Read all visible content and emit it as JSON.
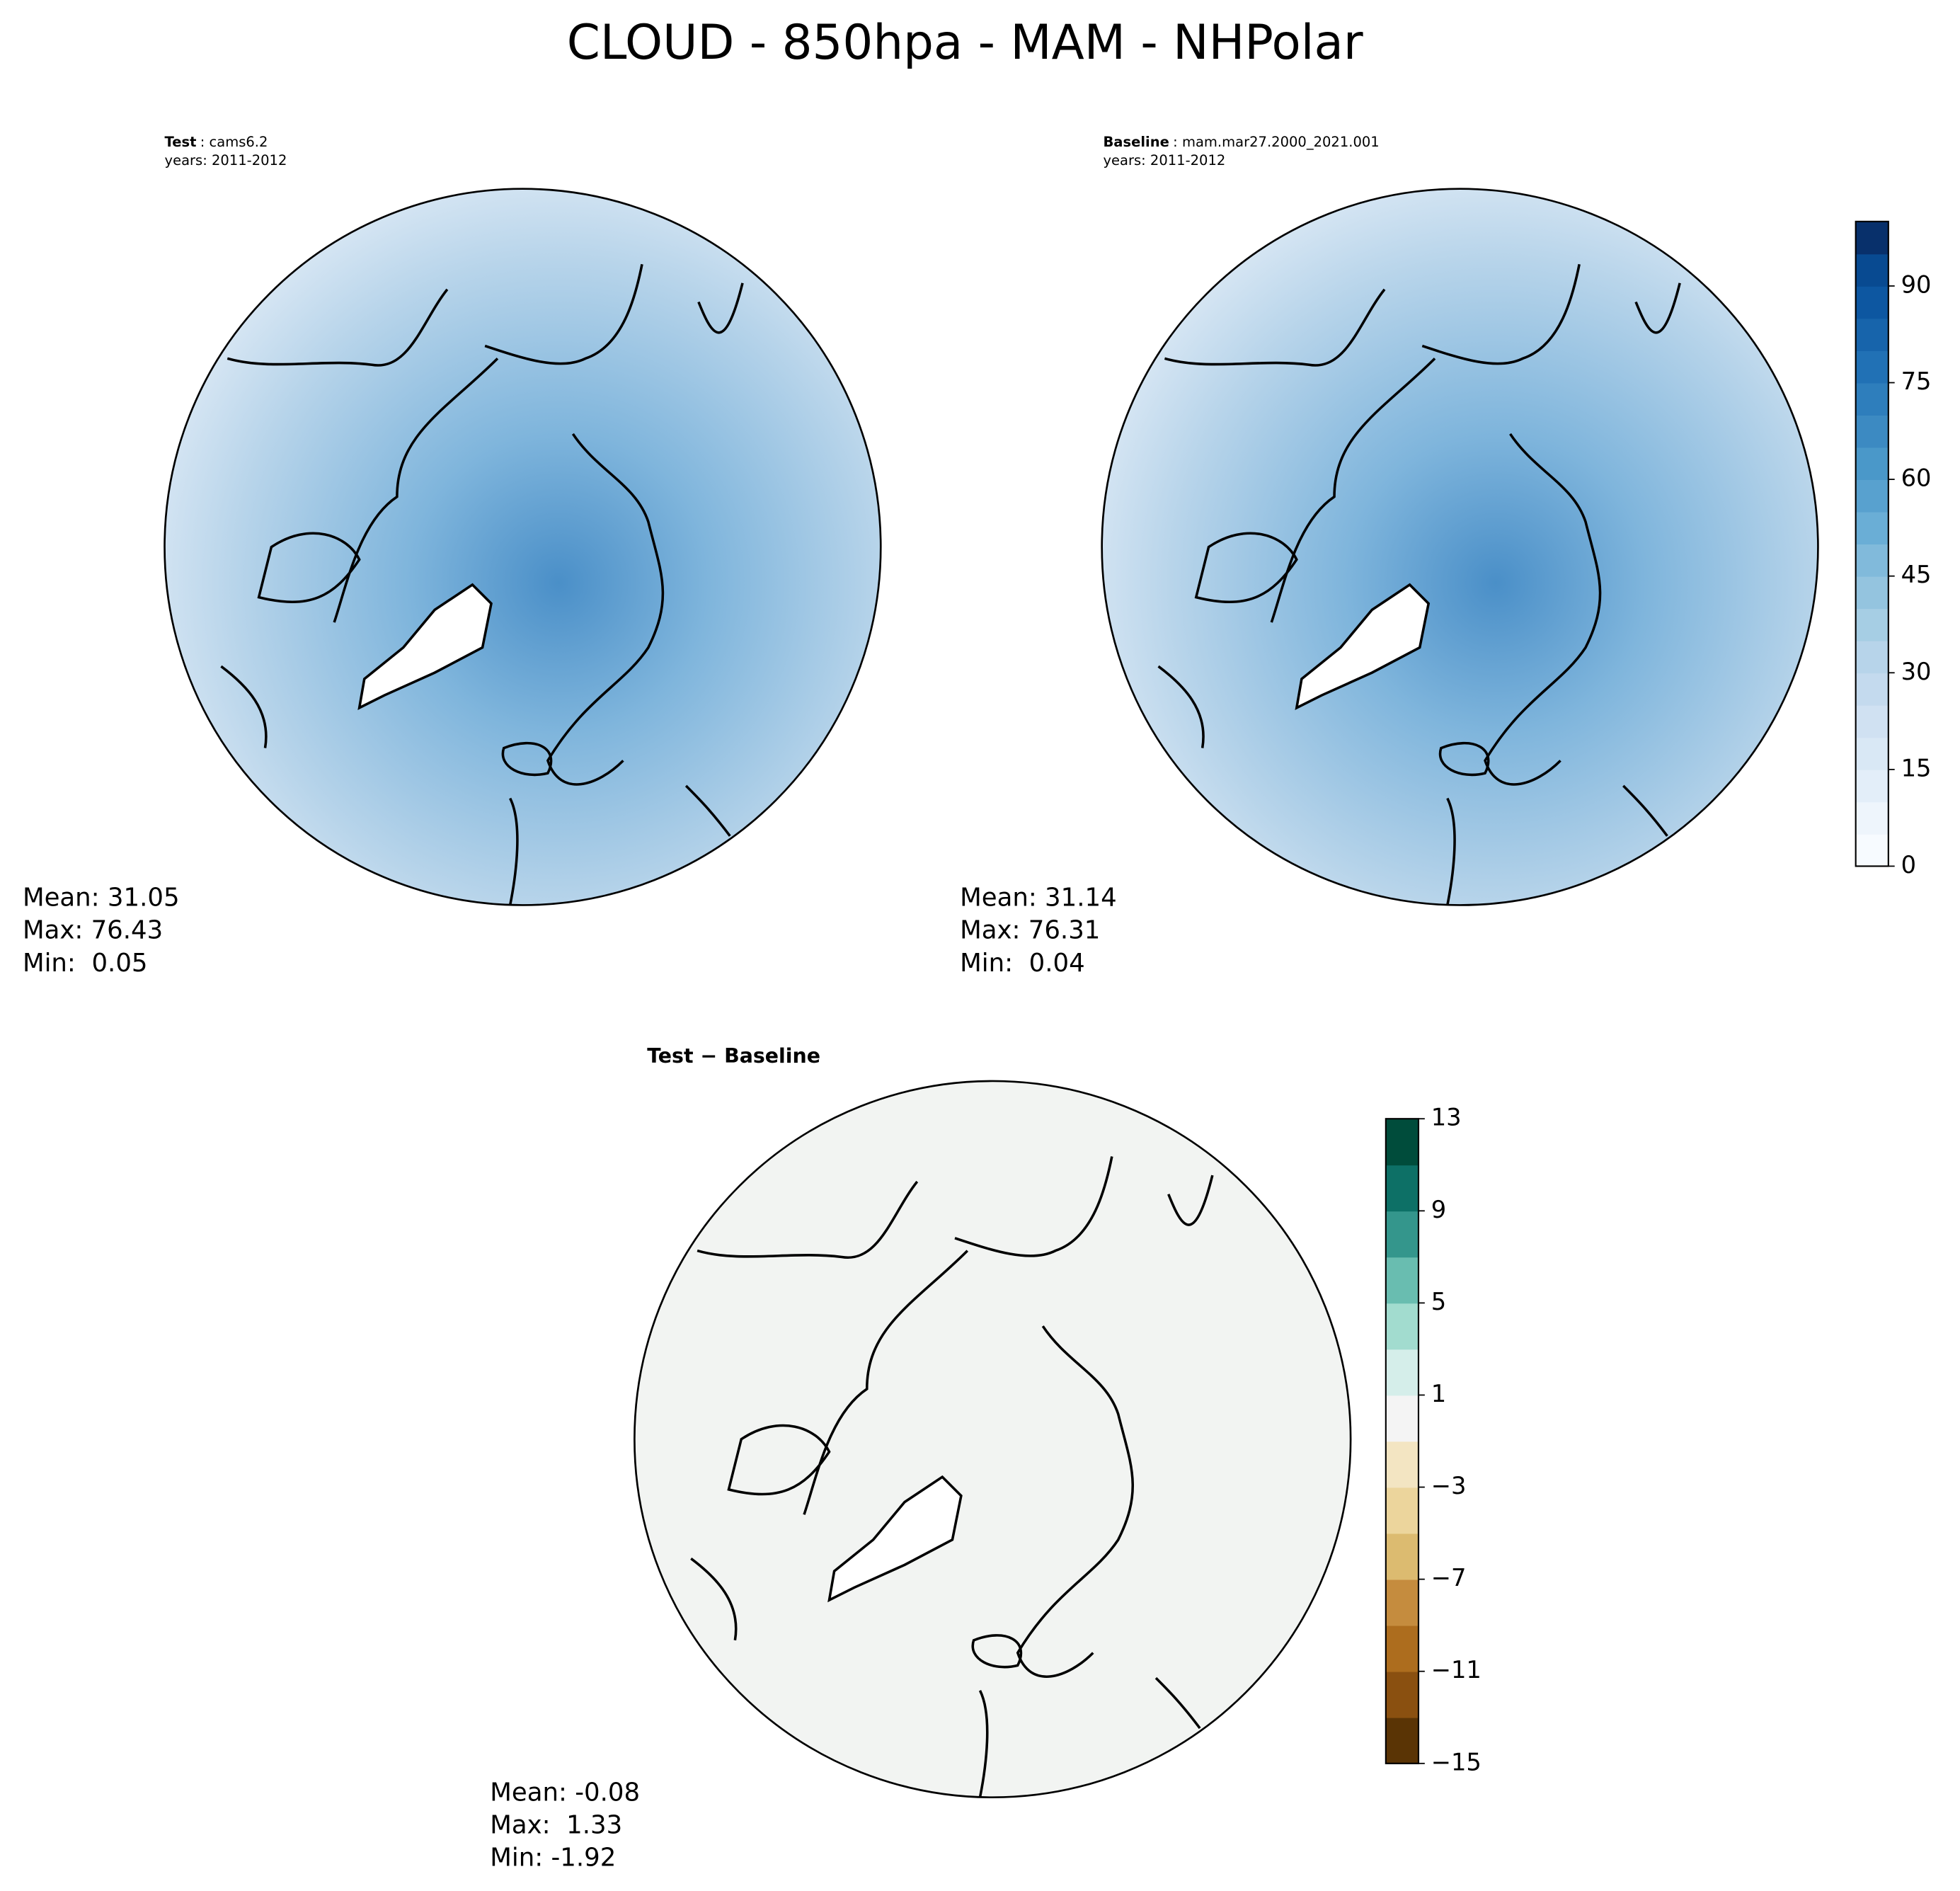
{
  "chart_data": {
    "type": "polar-map",
    "title": "CLOUD - 850hpa - MAM - NHPolar",
    "panels": [
      {
        "label": "Test",
        "text": ": cams6.2",
        "years": "years: 2011-2012",
        "stats": [
          "Mean: 31.05",
          "Max: 76.43",
          "Min:  0.05"
        ]
      },
      {
        "label": "Baseline",
        "text": ": mam.mar27.2000_2021.001",
        "years": "years: 2011-2012",
        "stats": [
          "Mean: 31.14",
          "Max: 76.31",
          "Min:  0.04"
        ]
      },
      {
        "title": "Test − Baseline",
        "stats": [
          "Mean: -0.08",
          "Max:  1.33",
          "Min: -1.92"
        ]
      }
    ],
    "colorbars": [
      {
        "lim": [
          0,
          100
        ],
        "ticks": [
          0,
          15,
          30,
          45,
          60,
          75,
          90
        ],
        "colors": [
          "#f7fbff",
          "#eef5fc",
          "#e3eef9",
          "#d9e8f5",
          "#d0e1f2",
          "#c4daee",
          "#b7d4ea",
          "#a6cee4",
          "#94c4df",
          "#81badb",
          "#6aaed6",
          "#58a1cf",
          "#4a98c9",
          "#3c8ac2",
          "#2e7ebc",
          "#2171b5",
          "#1764ab",
          "#0d57a1",
          "#084a91",
          "#08306b"
        ]
      },
      {
        "lim": [
          -15,
          13
        ],
        "ticks": [
          {
            "value": -15,
            "label": "−15"
          },
          {
            "value": -11,
            "label": "−11"
          },
          {
            "value": -7,
            "label": "−7"
          },
          {
            "value": -3,
            "label": "−3"
          },
          1,
          5,
          9,
          13
        ],
        "colors": [
          "#5a3405",
          "#8a5010",
          "#ad6d1e",
          "#c58c3e",
          "#dcbb70",
          "#ecd59c",
          "#f3e5c2",
          "#f4f4f4",
          "#d5eeea",
          "#a2dccf",
          "#69bdb0",
          "#34968c",
          "#0d7066",
          "#004c3b"
        ]
      }
    ]
  }
}
